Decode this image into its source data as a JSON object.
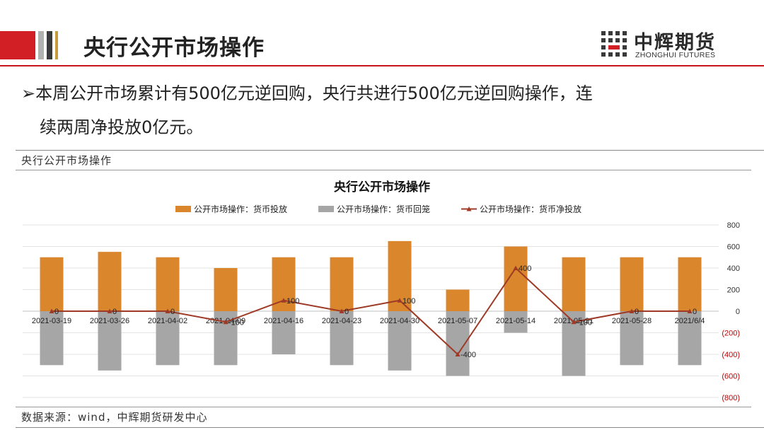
{
  "header": {
    "title": "央行公开市场操作"
  },
  "logo": {
    "name_cn": "中辉期货",
    "name_en": "ZHONGHUI FUTURES"
  },
  "bullet": {
    "marker": "➢",
    "line1": "本周公开市场累计有500亿元逆回购，央行共进行500亿元逆回购操作，连",
    "line2": "续两周净投放0亿元。"
  },
  "section_label": "央行公开市场操作",
  "source_note": "数据来源：wind，中辉期货研发中心",
  "colors": {
    "brand_red": "#d11f25",
    "injection": "#d9862c",
    "withdrawal": "#a6a6a6",
    "net": "#9e3a26"
  },
  "chart_data": {
    "type": "bar",
    "title": "央行公开市场操作",
    "categories": [
      "2021-03-19",
      "2021-03-26",
      "2021-04-02",
      "2021-04-09",
      "2021-04-16",
      "2021-04-23",
      "2021-04-30",
      "2021-05-07",
      "2021-05-14",
      "2021-05-21",
      "2021-05-28",
      "2021/6/4"
    ],
    "series": [
      {
        "name": "公开市场操作：货币投放",
        "kind": "bar",
        "color": "#d9862c",
        "values": [
          500,
          550,
          500,
          400,
          500,
          500,
          650,
          200,
          600,
          500,
          500,
          500
        ]
      },
      {
        "name": "公开市场操作：货币回笼",
        "kind": "bar",
        "color": "#a6a6a6",
        "values": [
          -500,
          -550,
          -500,
          -500,
          -400,
          -500,
          -550,
          -600,
          -200,
          -600,
          -500,
          -500
        ]
      },
      {
        "name": "公开市场操作：货币净投放",
        "kind": "line",
        "color": "#9e3a26",
        "values": [
          0,
          0,
          0,
          -100,
          100,
          0,
          100,
          -400,
          400,
          -100,
          0,
          0
        ],
        "data_labels": [
          "0",
          "0",
          "0",
          "-100",
          "100",
          "0",
          "100",
          "-400",
          "400",
          "-100",
          "0",
          "0"
        ]
      }
    ],
    "ylim": [
      -800,
      800
    ],
    "yticks": [
      800,
      600,
      400,
      200,
      0,
      -200,
      -400,
      -600,
      -800
    ],
    "ytick_labels": [
      "800",
      "600",
      "400",
      "200",
      "0",
      "(200)",
      "(400)",
      "(600)",
      "(800)"
    ],
    "grid": true,
    "legend": "top"
  }
}
